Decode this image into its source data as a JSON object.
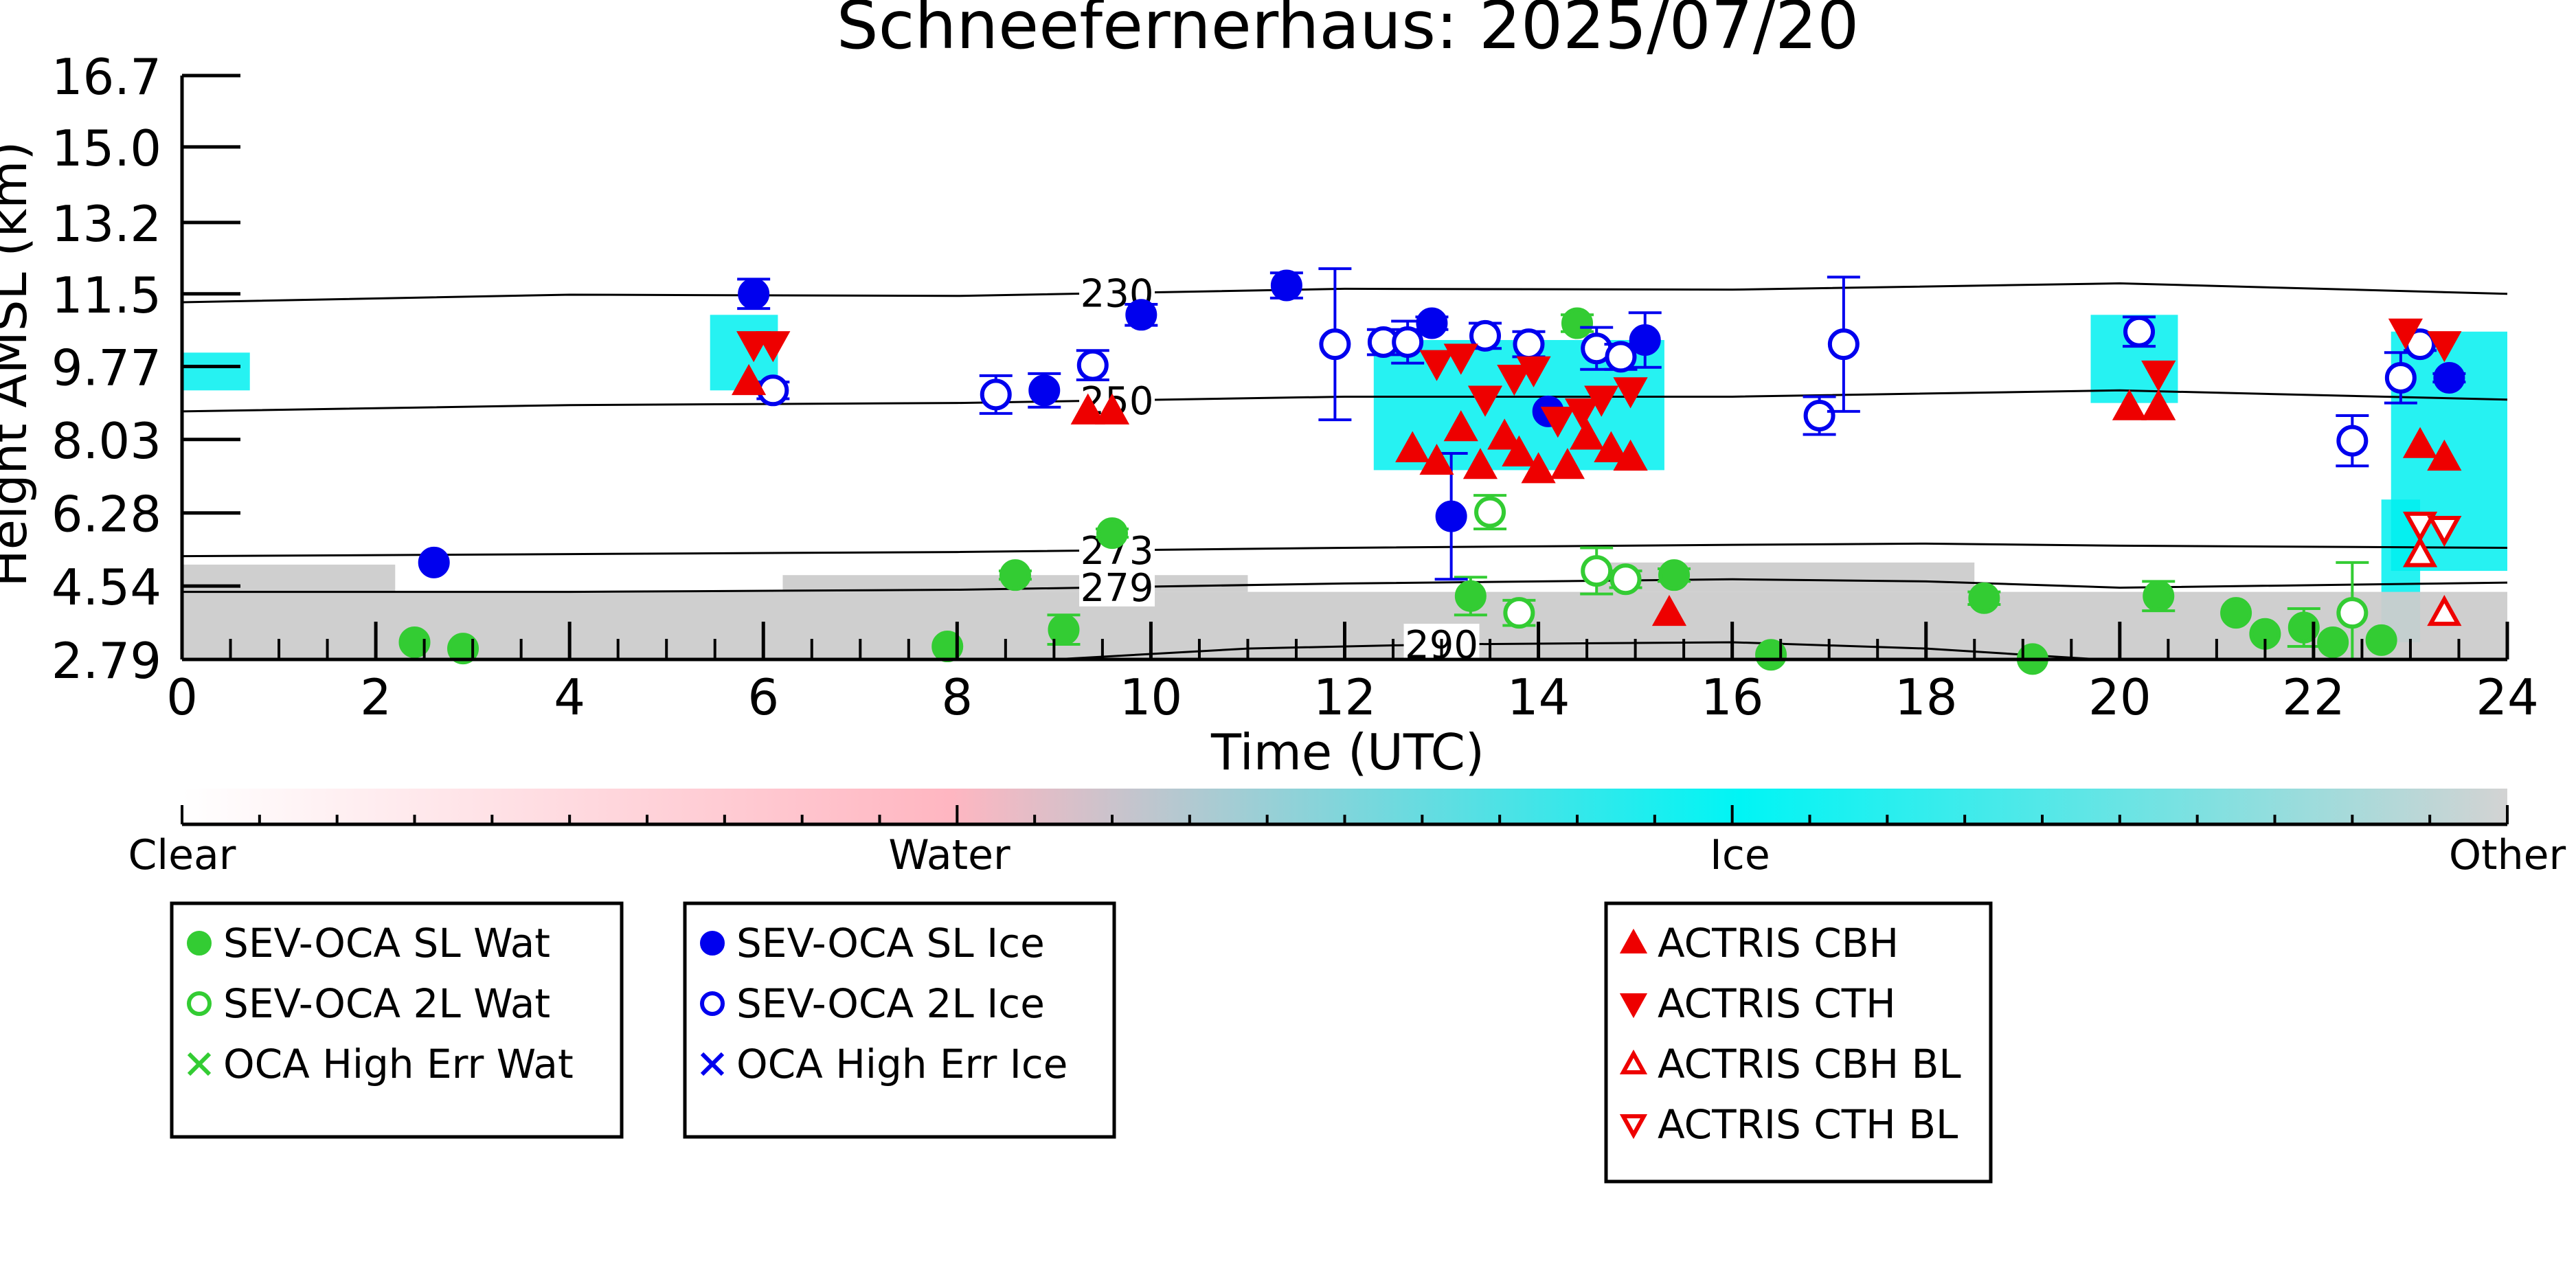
{
  "chart_data": {
    "type": "scatter",
    "title": "Schneefernerhaus: 2025/07/20",
    "xlabel": "Time (UTC)",
    "ylabel": "Height AMSL (km)",
    "xlim": [
      0,
      24
    ],
    "ylim": [
      2.79,
      16.7
    ],
    "x_ticks": [
      "0",
      "2",
      "4",
      "6",
      "8",
      "10",
      "12",
      "14",
      "16",
      "18",
      "20",
      "22",
      "24"
    ],
    "y_ticks": [
      "2.79",
      "4.54",
      "6.28",
      "8.03",
      "9.77",
      "11.5",
      "13.2",
      "15.0",
      "16.7"
    ],
    "colorbar": {
      "labels": [
        "Clear",
        "Water",
        "Ice",
        "Other"
      ],
      "colors": [
        "#ffffff",
        "#ffb6c1",
        "#00f5f5",
        "#d3d3d3"
      ]
    },
    "colors": {
      "water": "#33cc33",
      "ice": "#0000ee",
      "actris": "#ee0000",
      "cloud_ice": "#00f0f0",
      "cloud_other": "#cccccc",
      "cloud_water": "#ffb6c1"
    },
    "isotherms": [
      {
        "label": "230",
        "label_x": 9.65,
        "points": [
          [
            0,
            11.3
          ],
          [
            4,
            11.48
          ],
          [
            8,
            11.45
          ],
          [
            12,
            11.62
          ],
          [
            16,
            11.6
          ],
          [
            20,
            11.75
          ],
          [
            24,
            11.5
          ]
        ]
      },
      {
        "label": "250",
        "label_x": 9.65,
        "points": [
          [
            0,
            8.7
          ],
          [
            4,
            8.85
          ],
          [
            8,
            8.9
          ],
          [
            12,
            9.05
          ],
          [
            16,
            9.05
          ],
          [
            20,
            9.2
          ],
          [
            24,
            8.98
          ]
        ]
      },
      {
        "label": "273",
        "label_x": 9.65,
        "points": [
          [
            0,
            5.25
          ],
          [
            4,
            5.3
          ],
          [
            8,
            5.35
          ],
          [
            12,
            5.45
          ],
          [
            16,
            5.52
          ],
          [
            18,
            5.55
          ],
          [
            20,
            5.5
          ],
          [
            24,
            5.45
          ]
        ]
      },
      {
        "label": "279",
        "label_x": 9.65,
        "points": [
          [
            0,
            4.4
          ],
          [
            4,
            4.4
          ],
          [
            8,
            4.45
          ],
          [
            12,
            4.6
          ],
          [
            16,
            4.7
          ],
          [
            18,
            4.65
          ],
          [
            20,
            4.5
          ],
          [
            24,
            4.62
          ]
        ]
      },
      {
        "label": "290",
        "label_x": 13.0,
        "points": [
          [
            9,
            2.79
          ],
          [
            11,
            3.05
          ],
          [
            13,
            3.15
          ],
          [
            16,
            3.2
          ],
          [
            18,
            3.05
          ],
          [
            19.8,
            2.79
          ]
        ]
      }
    ],
    "series": [
      {
        "name": "SEV-OCA SL Wat",
        "marker": "circle-filled",
        "color": "#33cc33",
        "points": [
          [
            2.4,
            3.2
          ],
          [
            2.9,
            3.05
          ],
          [
            7.9,
            3.1
          ],
          [
            8.6,
            4.8
          ],
          [
            9.1,
            3.5
          ],
          [
            9.6,
            5.8
          ],
          [
            13.3,
            4.3
          ],
          [
            14.4,
            10.8
          ],
          [
            15.4,
            4.8
          ],
          [
            16.4,
            2.9
          ],
          [
            18.6,
            4.25
          ],
          [
            20.4,
            4.3
          ],
          [
            21.2,
            3.9
          ],
          [
            21.5,
            3.4
          ],
          [
            21.9,
            3.55
          ],
          [
            22.2,
            3.2
          ],
          [
            22.7,
            3.25
          ],
          [
            19.1,
            2.8
          ]
        ],
        "err": [
          0,
          0,
          0,
          0.1,
          0.35,
          0.1,
          0.45,
          0.2,
          0.15,
          0,
          0.15,
          0.35,
          0,
          0,
          0.45,
          0,
          0,
          0
        ]
      },
      {
        "name": "SEV-OCA 2L Wat",
        "marker": "circle-open",
        "color": "#33cc33",
        "points": [
          [
            13.5,
            6.3
          ],
          [
            13.8,
            3.9
          ],
          [
            14.6,
            4.9
          ],
          [
            14.9,
            4.7
          ],
          [
            22.4,
            3.9
          ]
        ],
        "err": [
          0.4,
          0.3,
          0.55,
          0.2,
          1.2
        ]
      },
      {
        "name": "OCA High Err Wat",
        "marker": "x",
        "color": "#33cc33",
        "points": []
      },
      {
        "name": "SEV-OCA SL Ice",
        "marker": "circle-filled",
        "color": "#0000ee",
        "points": [
          [
            2.6,
            5.1
          ],
          [
            5.9,
            11.5
          ],
          [
            8.9,
            9.2
          ],
          [
            9.9,
            11.0
          ],
          [
            11.4,
            11.7
          ],
          [
            12.9,
            10.8
          ],
          [
            13.1,
            6.2
          ],
          [
            14.1,
            8.7
          ],
          [
            15.1,
            10.4
          ],
          [
            23.4,
            9.5
          ]
        ],
        "err": [
          0,
          0.35,
          0.4,
          0.25,
          0.3,
          0.15,
          1.5,
          0,
          0.65,
          0.1
        ]
      },
      {
        "name": "SEV-OCA 2L Ice",
        "marker": "circle-open",
        "color": "#0000ee",
        "points": [
          [
            6.1,
            9.2
          ],
          [
            8.4,
            9.1
          ],
          [
            9.4,
            9.8
          ],
          [
            11.9,
            10.3
          ],
          [
            12.4,
            10.35
          ],
          [
            12.65,
            10.35
          ],
          [
            13.45,
            10.5
          ],
          [
            13.9,
            10.3
          ],
          [
            14.6,
            10.2
          ],
          [
            14.85,
            10.0
          ],
          [
            16.9,
            8.6
          ],
          [
            17.15,
            10.3
          ],
          [
            20.2,
            10.6
          ],
          [
            22.4,
            8.0
          ],
          [
            22.9,
            9.5
          ],
          [
            23.1,
            10.3
          ]
        ],
        "err": [
          0.2,
          0.45,
          0.35,
          1.8,
          0.3,
          0.5,
          0.3,
          0.3,
          0.5,
          0.3,
          0.45,
          1.6,
          0.35,
          0.6,
          0.6,
          0.15
        ]
      },
      {
        "name": "OCA High Err Ice",
        "marker": "x",
        "color": "#0000ee",
        "points": []
      },
      {
        "name": "ACTRIS CBH",
        "marker": "triangle-up-filled",
        "color": "#ee0000",
        "points": [
          [
            5.85,
            9.4
          ],
          [
            9.35,
            8.7
          ],
          [
            9.6,
            8.7
          ],
          [
            12.7,
            7.8
          ],
          [
            12.95,
            7.5
          ],
          [
            13.2,
            8.3
          ],
          [
            13.4,
            7.4
          ],
          [
            13.65,
            8.1
          ],
          [
            13.8,
            7.7
          ],
          [
            14.0,
            7.3
          ],
          [
            14.3,
            7.4
          ],
          [
            14.5,
            8.1
          ],
          [
            14.75,
            7.8
          ],
          [
            14.95,
            7.6
          ],
          [
            15.35,
            3.9
          ],
          [
            20.1,
            8.8
          ],
          [
            20.4,
            8.8
          ],
          [
            23.1,
            7.9
          ],
          [
            23.35,
            7.6
          ]
        ]
      },
      {
        "name": "ACTRIS CTH",
        "marker": "triangle-down-filled",
        "color": "#ee0000",
        "points": [
          [
            5.9,
            10.3
          ],
          [
            6.1,
            10.3
          ],
          [
            12.95,
            9.85
          ],
          [
            13.2,
            10.0
          ],
          [
            13.45,
            9.0
          ],
          [
            13.75,
            9.5
          ],
          [
            13.95,
            9.7
          ],
          [
            14.2,
            8.5
          ],
          [
            14.45,
            8.7
          ],
          [
            14.65,
            9.0
          ],
          [
            14.95,
            9.2
          ],
          [
            20.4,
            9.6
          ],
          [
            22.95,
            10.6
          ],
          [
            23.35,
            10.3
          ]
        ]
      },
      {
        "name": "ACTRIS CBH BL",
        "marker": "triangle-up-open",
        "color": "#ee0000",
        "points": [
          [
            23.1,
            5.3
          ],
          [
            23.35,
            3.9
          ]
        ]
      },
      {
        "name": "ACTRIS CTH BL",
        "marker": "triangle-down-open",
        "color": "#ee0000",
        "points": [
          [
            23.1,
            6.0
          ],
          [
            23.35,
            5.9
          ]
        ]
      }
    ],
    "cloud_regions": [
      {
        "class": "ice",
        "x0": 0,
        "x1": 0.7,
        "y0": 9.2,
        "y1": 10.1
      },
      {
        "class": "ice",
        "x0": 5.45,
        "x1": 6.15,
        "y0": 9.2,
        "y1": 11.0
      },
      {
        "class": "ice",
        "x0": 12.3,
        "x1": 15.3,
        "y0": 7.3,
        "y1": 10.4
      },
      {
        "class": "ice",
        "x0": 19.7,
        "x1": 20.6,
        "y0": 8.9,
        "y1": 11.0
      },
      {
        "class": "ice",
        "x0": 22.8,
        "x1": 24,
        "y0": 4.9,
        "y1": 10.6
      },
      {
        "class": "ice",
        "x0": 22.7,
        "x1": 23.1,
        "y0": 3.2,
        "y1": 6.6
      },
      {
        "class": "other",
        "x0": 0,
        "x1": 24,
        "y0": 2.79,
        "y1": 4.4
      },
      {
        "class": "other",
        "x0": 0,
        "x1": 2.2,
        "y0": 4.4,
        "y1": 5.05
      },
      {
        "class": "other",
        "x0": 6.2,
        "x1": 11.0,
        "y0": 4.4,
        "y1": 4.8
      },
      {
        "class": "other",
        "x0": 14.6,
        "x1": 18.5,
        "y0": 4.4,
        "y1": 5.1
      }
    ],
    "legend": [
      [
        "SEV-OCA SL Wat",
        "SEV-OCA 2L Wat",
        "OCA High Err Wat"
      ],
      [
        "SEV-OCA SL Ice",
        "SEV-OCA 2L Ice",
        "OCA High Err Ice"
      ],
      [
        "ACTRIS CBH",
        "ACTRIS CTH",
        "ACTRIS CBH BL",
        "ACTRIS CTH BL"
      ]
    ]
  }
}
